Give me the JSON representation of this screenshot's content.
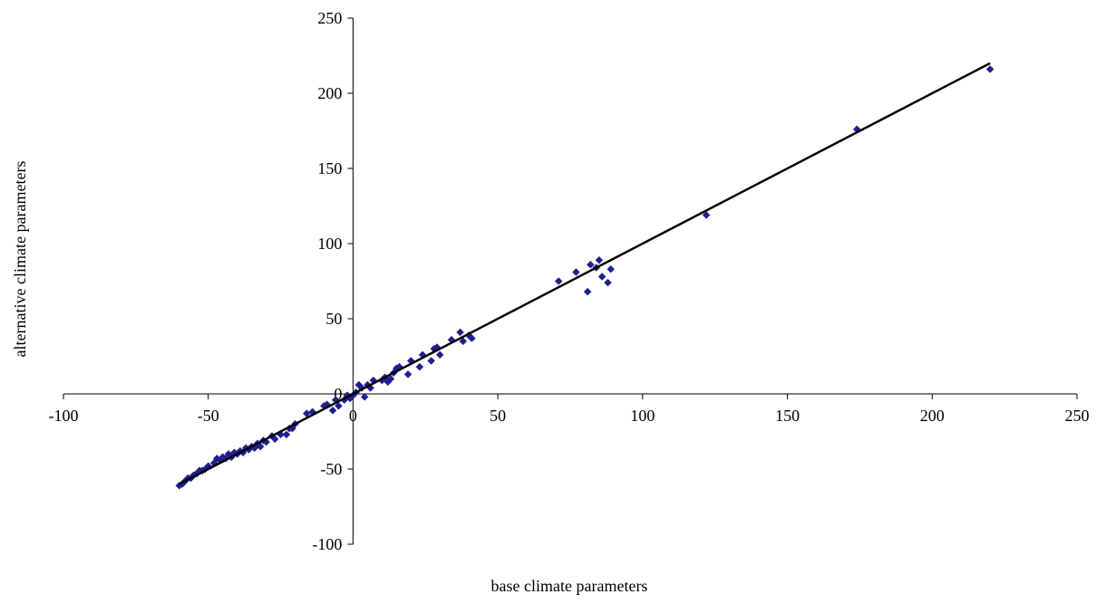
{
  "chart_data": {
    "type": "scatter",
    "title": "",
    "xlabel": "base climate parameters",
    "ylabel": "alternative climate parameters",
    "xlim": [
      -100,
      250
    ],
    "ylim": [
      -100,
      250
    ],
    "xticks": [
      -100,
      -50,
      0,
      50,
      100,
      150,
      200,
      250
    ],
    "yticks": [
      -100,
      -50,
      0,
      50,
      100,
      150,
      200,
      250
    ],
    "x_tick_labels": [
      "-100",
      "-50",
      "0",
      "50",
      "100",
      "150",
      "200",
      "250"
    ],
    "y_tick_labels": [
      "-100",
      "-50",
      "0",
      "50",
      "100",
      "150",
      "200",
      "250"
    ],
    "grid": false,
    "legend": "none",
    "marker": "diamond",
    "marker_color": "#1f1f8f",
    "line_color": "#000000",
    "series": [
      {
        "x": [
          220,
          174,
          122,
          89,
          88,
          86,
          85,
          84,
          82,
          81,
          77,
          71,
          41,
          40,
          38,
          37,
          34,
          30,
          29,
          28,
          27,
          24,
          23,
          20,
          19,
          16,
          15,
          14,
          13,
          12,
          11,
          10,
          7,
          6,
          5,
          4,
          3,
          2,
          1,
          0,
          -1,
          -2,
          -3,
          -5,
          -6,
          -7,
          -9,
          -10,
          -14,
          -16,
          -20,
          -21,
          -22,
          -23,
          -25,
          -27,
          -28,
          -30,
          -31,
          -32,
          -33,
          -34,
          -35,
          -36,
          -37,
          -38,
          -39,
          -40,
          -41,
          -42,
          -43,
          -44,
          -45,
          -46,
          -47,
          -48,
          -50,
          -51,
          -52,
          -53,
          -54,
          -55,
          -56,
          -57,
          -58,
          -59,
          -60
        ],
        "y": [
          216,
          176,
          119,
          83,
          74,
          78,
          89,
          84,
          86,
          68,
          81,
          75,
          37,
          39,
          35,
          41,
          36,
          26,
          31,
          30,
          22,
          26,
          18,
          22,
          13,
          18,
          17,
          14,
          10,
          8,
          11,
          9,
          9,
          4,
          6,
          -2,
          4,
          6,
          1,
          -1,
          -3,
          -1,
          -4,
          -8,
          -4,
          -11,
          -7,
          -8,
          -12,
          -13,
          -20,
          -23,
          -23,
          -27,
          -27,
          -30,
          -28,
          -32,
          -31,
          -35,
          -33,
          -36,
          -35,
          -37,
          -36,
          -39,
          -38,
          -40,
          -39,
          -42,
          -40,
          -43,
          -42,
          -44,
          -43,
          -46,
          -48,
          -50,
          -51,
          -51,
          -53,
          -54,
          -56,
          -56,
          -58,
          -60,
          -61
        ]
      }
    ],
    "fit_line": {
      "x": [
        -60,
        220
      ],
      "y": [
        -60,
        220
      ]
    }
  }
}
